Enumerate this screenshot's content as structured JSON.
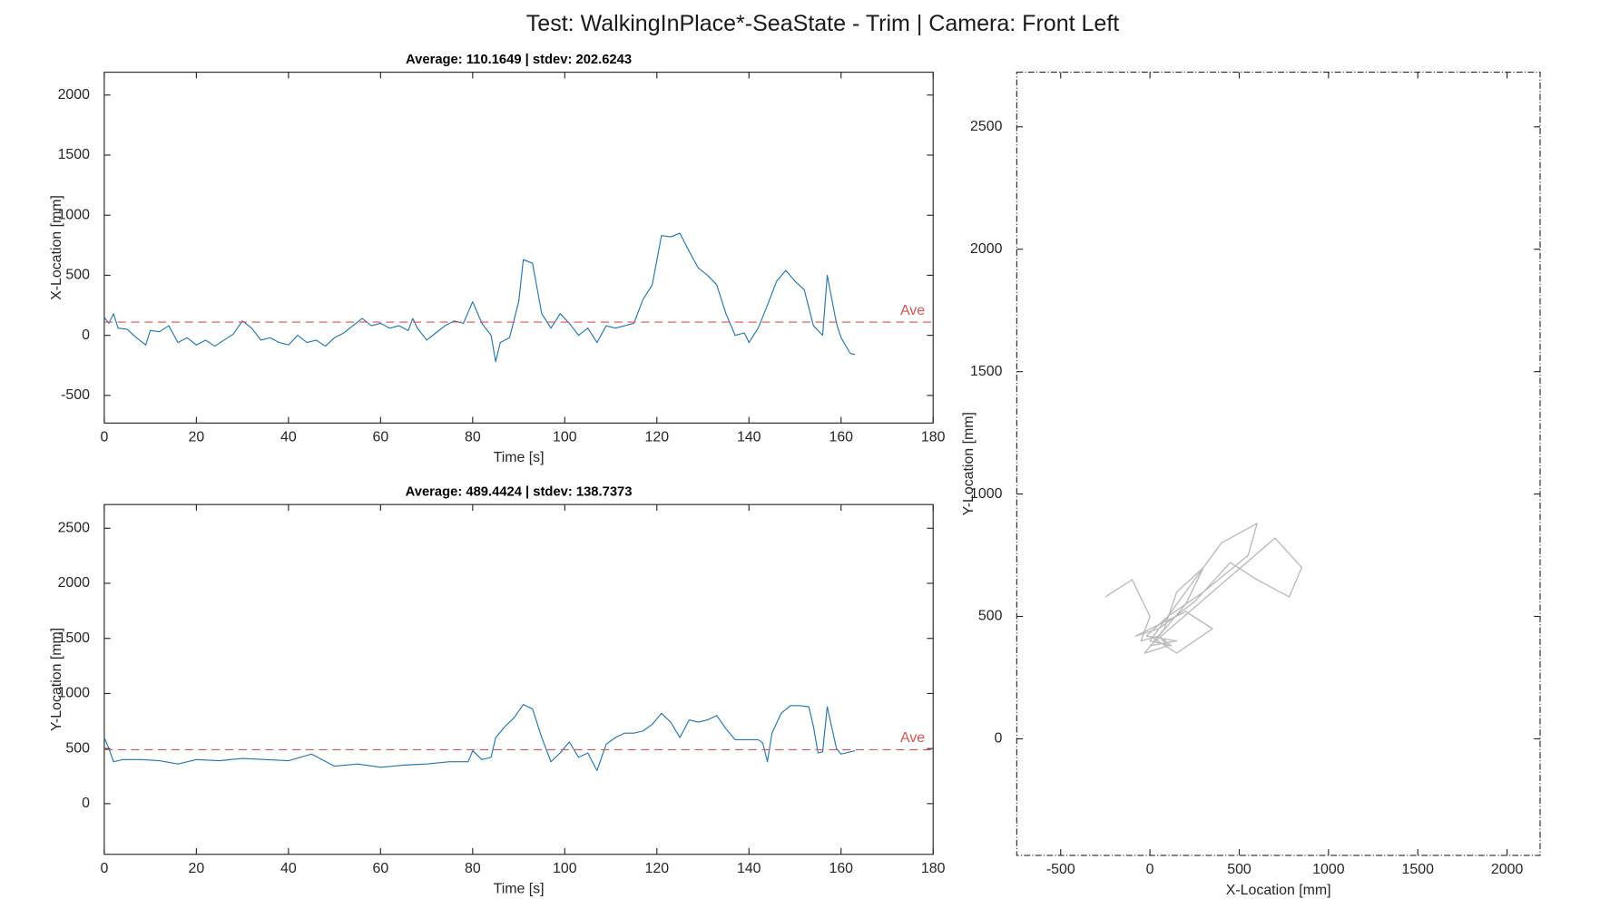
{
  "title": "Test: WalkingInPlace*-SeaState - Trim  |  Camera: Front Left",
  "chart_data": [
    {
      "type": "line",
      "subtitle": "Average: 110.1649  |  stdev: 202.6243",
      "xlabel": "Time [s]",
      "ylabel": "X-Location [mm]",
      "xlim": [
        0,
        180
      ],
      "xticks": [
        0,
        20,
        40,
        60,
        80,
        100,
        120,
        140,
        160,
        180
      ],
      "ylim": [
        -730,
        2190
      ],
      "yticks": [
        -500,
        0,
        500,
        1000,
        1500,
        2000
      ],
      "ave": {
        "value": 110.1649,
        "label": "Ave",
        "color": "#d9534f"
      },
      "series": [
        {
          "color": "#1f77b4",
          "x": [
            0,
            1,
            2,
            3,
            5,
            7,
            9,
            10,
            12,
            14,
            16,
            18,
            20,
            22,
            24,
            26,
            28,
            30,
            32,
            34,
            36,
            38,
            40,
            42,
            44,
            46,
            48,
            50,
            52,
            54,
            56,
            58,
            60,
            62,
            64,
            66,
            67,
            68,
            70,
            72,
            74,
            76,
            78,
            80,
            82,
            84,
            85,
            86,
            88,
            90,
            91,
            93,
            95,
            97,
            99,
            101,
            103,
            105,
            107,
            109,
            111,
            113,
            115,
            117,
            119,
            121,
            123,
            125,
            127,
            129,
            131,
            133,
            135,
            137,
            139,
            140,
            142,
            144,
            146,
            148,
            150,
            152,
            154,
            156,
            157,
            159,
            160,
            162,
            163
          ],
          "values": [
            150,
            100,
            180,
            60,
            50,
            -20,
            -80,
            40,
            30,
            80,
            -60,
            -20,
            -80,
            -40,
            -90,
            -40,
            10,
            120,
            60,
            -40,
            -20,
            -60,
            -80,
            0,
            -60,
            -40,
            -90,
            -20,
            20,
            80,
            140,
            80,
            100,
            60,
            80,
            40,
            140,
            60,
            -40,
            20,
            80,
            120,
            100,
            280,
            100,
            0,
            -220,
            -60,
            -20,
            280,
            630,
            600,
            180,
            60,
            180,
            100,
            0,
            60,
            -60,
            80,
            60,
            80,
            100,
            300,
            420,
            830,
            820,
            850,
            700,
            560,
            500,
            420,
            180,
            0,
            20,
            -60,
            60,
            250,
            450,
            540,
            450,
            380,
            80,
            0,
            500,
            100,
            -20,
            -150,
            -160
          ]
        }
      ]
    },
    {
      "type": "line",
      "subtitle": "Average: 489.4424  |  stdev: 138.7373",
      "xlabel": "Time [s]",
      "ylabel": "Y-Location [mm]",
      "xlim": [
        0,
        180
      ],
      "xticks": [
        0,
        20,
        40,
        60,
        80,
        100,
        120,
        140,
        160,
        180
      ],
      "ylim": [
        -460,
        2715
      ],
      "yticks": [
        0,
        500,
        1000,
        1500,
        2000,
        2500
      ],
      "ave": {
        "value": 489.4424,
        "label": "Ave",
        "color": "#d9534f"
      },
      "series": [
        {
          "color": "#1f77b4",
          "x": [
            0,
            1,
            2,
            4,
            8,
            12,
            16,
            20,
            25,
            30,
            35,
            40,
            45,
            50,
            55,
            60,
            65,
            70,
            75,
            79,
            80,
            82,
            84,
            85,
            87,
            89,
            91,
            93,
            95,
            97,
            99,
            101,
            103,
            105,
            107,
            109,
            111,
            113,
            115,
            117,
            119,
            121,
            123,
            125,
            127,
            129,
            131,
            133,
            135,
            137,
            139,
            142,
            143,
            144,
            145,
            147,
            149,
            151,
            153,
            154,
            155,
            156,
            157,
            159,
            160,
            163
          ],
          "values": [
            600,
            500,
            380,
            400,
            400,
            390,
            360,
            400,
            390,
            410,
            400,
            390,
            450,
            340,
            360,
            330,
            350,
            360,
            380,
            380,
            480,
            400,
            420,
            600,
            700,
            780,
            900,
            860,
            600,
            380,
            460,
            560,
            420,
            460,
            300,
            540,
            600,
            640,
            640,
            660,
            720,
            820,
            740,
            600,
            760,
            740,
            760,
            800,
            680,
            580,
            580,
            580,
            550,
            380,
            640,
            820,
            890,
            890,
            880,
            700,
            460,
            470,
            880,
            500,
            450,
            480
          ]
        }
      ]
    },
    {
      "type": "line",
      "xlabel": "X-Location [mm]",
      "ylabel": "Y-Location [mm]",
      "xlim": [
        -746,
        2185
      ],
      "xticks": [
        -500,
        0,
        500,
        1000,
        1500,
        2000
      ],
      "ylim": [
        -476,
        2723
      ],
      "yticks": [
        0,
        500,
        1000,
        1500,
        2000,
        2500
      ],
      "series": [
        {
          "color": "#555555",
          "x": [
            -250,
            -100,
            0,
            -50,
            50,
            100,
            -30,
            80,
            150,
            300,
            200,
            50,
            120,
            0,
            250,
            400,
            600,
            550,
            300,
            100,
            -20,
            150,
            0,
            700,
            850,
            780,
            600,
            450,
            250,
            50,
            -80,
            200,
            350,
            150,
            0
          ],
          "values": [
            580,
            650,
            500,
            400,
            420,
            380,
            350,
            450,
            600,
            700,
            550,
            420,
            380,
            400,
            650,
            800,
            880,
            750,
            600,
            500,
            420,
            400,
            380,
            820,
            700,
            580,
            650,
            720,
            560,
            450,
            420,
            520,
            450,
            350,
            420
          ]
        }
      ]
    }
  ]
}
